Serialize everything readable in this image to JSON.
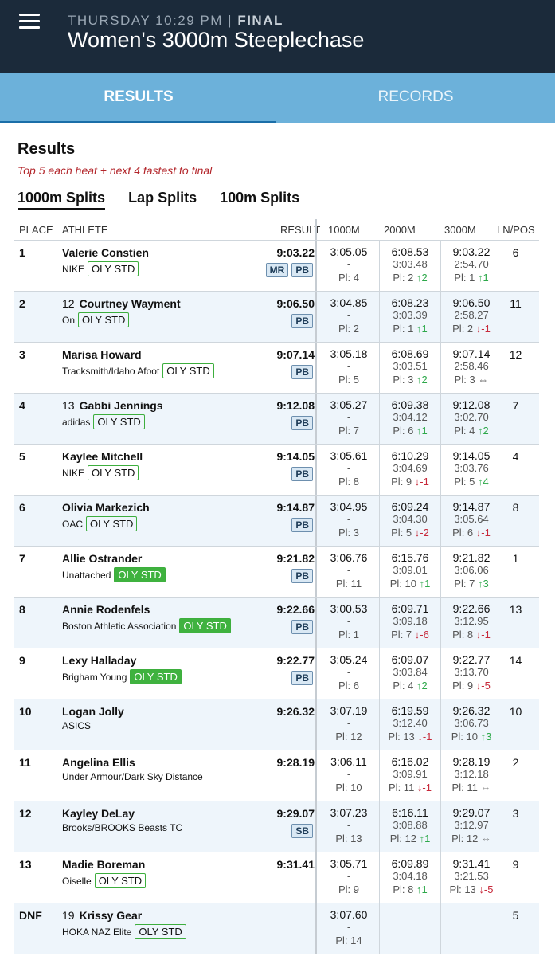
{
  "header": {
    "day_time": "THURSDAY 10:29 PM",
    "separator": " | ",
    "status": "FINAL",
    "title": "Women's 3000m Steeplechase"
  },
  "tabs": [
    {
      "label": "RESULTS"
    },
    {
      "label": "RECORDS"
    }
  ],
  "section": {
    "title": "Results",
    "note": "Top 5 each heat + next 4 fastest to final"
  },
  "split_tabs": [
    {
      "label": "1000m Splits"
    },
    {
      "label": "Lap Splits"
    },
    {
      "label": "100m Splits"
    }
  ],
  "columns": {
    "place": "PLACE",
    "athlete": "ATHLETE",
    "result": "RESULT",
    "s1": "1000M",
    "s2": "2000M",
    "s3": "3000M",
    "lane": "LN/POS"
  },
  "rows": [
    {
      "place": "1",
      "bib": "",
      "name": "Valerie Constien",
      "team": "NIKE",
      "oly": "OLY STD",
      "oly_fill": false,
      "result": "9:03.22",
      "badges": [
        "MR",
        "PB"
      ],
      "s1": {
        "t": "3:05.05",
        "l": "-",
        "p": "Pl: 4",
        "a": "",
        "d": ""
      },
      "s2": {
        "t": "6:08.53",
        "l": "3:03.48",
        "p": "Pl: 2",
        "a": "↑2",
        "d": "up"
      },
      "s3": {
        "t": "9:03.22",
        "l": "2:54.70",
        "p": "Pl: 1",
        "a": "↑1",
        "d": "up"
      },
      "lane": "6"
    },
    {
      "place": "2",
      "bib": "12",
      "name": "Courtney Wayment",
      "team": "On",
      "oly": "OLY STD",
      "oly_fill": false,
      "result": "9:06.50",
      "badges": [
        "PB"
      ],
      "s1": {
        "t": "3:04.85",
        "l": "-",
        "p": "Pl: 2",
        "a": "",
        "d": ""
      },
      "s2": {
        "t": "6:08.23",
        "l": "3:03.39",
        "p": "Pl: 1",
        "a": "↑1",
        "d": "up"
      },
      "s3": {
        "t": "9:06.50",
        "l": "2:58.27",
        "p": "Pl: 2",
        "a": "↓-1",
        "d": "down"
      },
      "lane": "11"
    },
    {
      "place": "3",
      "bib": "",
      "name": "Marisa Howard",
      "team": "Tracksmith/Idaho Afoot",
      "oly": "OLY STD",
      "oly_fill": false,
      "result": "9:07.14",
      "badges": [
        "PB"
      ],
      "s1": {
        "t": "3:05.18",
        "l": "-",
        "p": "Pl: 5",
        "a": "",
        "d": ""
      },
      "s2": {
        "t": "6:08.69",
        "l": "3:03.51",
        "p": "Pl: 3",
        "a": "↑2",
        "d": "up"
      },
      "s3": {
        "t": "9:07.14",
        "l": "2:58.46",
        "p": "Pl: 3",
        "a": "⇔",
        "d": "same"
      },
      "lane": "12"
    },
    {
      "place": "4",
      "bib": "13",
      "name": "Gabbi Jennings",
      "team": "adidas",
      "oly": "OLY STD",
      "oly_fill": false,
      "result": "9:12.08",
      "badges": [
        "PB"
      ],
      "s1": {
        "t": "3:05.27",
        "l": "-",
        "p": "Pl: 7",
        "a": "",
        "d": ""
      },
      "s2": {
        "t": "6:09.38",
        "l": "3:04.12",
        "p": "Pl: 6",
        "a": "↑1",
        "d": "up"
      },
      "s3": {
        "t": "9:12.08",
        "l": "3:02.70",
        "p": "Pl: 4",
        "a": "↑2",
        "d": "up"
      },
      "lane": "7"
    },
    {
      "place": "5",
      "bib": "",
      "name": "Kaylee Mitchell",
      "team": "NIKE",
      "oly": "OLY STD",
      "oly_fill": false,
      "result": "9:14.05",
      "badges": [
        "PB"
      ],
      "s1": {
        "t": "3:05.61",
        "l": "-",
        "p": "Pl: 8",
        "a": "",
        "d": ""
      },
      "s2": {
        "t": "6:10.29",
        "l": "3:04.69",
        "p": "Pl: 9",
        "a": "↓-1",
        "d": "down"
      },
      "s3": {
        "t": "9:14.05",
        "l": "3:03.76",
        "p": "Pl: 5",
        "a": "↑4",
        "d": "up"
      },
      "lane": "4"
    },
    {
      "place": "6",
      "bib": "",
      "name": "Olivia Markezich",
      "team": "OAC",
      "oly": "OLY STD",
      "oly_fill": false,
      "result": "9:14.87",
      "badges": [
        "PB"
      ],
      "s1": {
        "t": "3:04.95",
        "l": "-",
        "p": "Pl: 3",
        "a": "",
        "d": ""
      },
      "s2": {
        "t": "6:09.24",
        "l": "3:04.30",
        "p": "Pl: 5",
        "a": "↓-2",
        "d": "down"
      },
      "s3": {
        "t": "9:14.87",
        "l": "3:05.64",
        "p": "Pl: 6",
        "a": "↓-1",
        "d": "down"
      },
      "lane": "8"
    },
    {
      "place": "7",
      "bib": "",
      "name": "Allie Ostrander",
      "team": "Unattached",
      "oly": "OLY STD",
      "oly_fill": true,
      "result": "9:21.82",
      "badges": [
        "PB"
      ],
      "s1": {
        "t": "3:06.76",
        "l": "-",
        "p": "Pl: 11",
        "a": "",
        "d": ""
      },
      "s2": {
        "t": "6:15.76",
        "l": "3:09.01",
        "p": "Pl: 10",
        "a": "↑1",
        "d": "up"
      },
      "s3": {
        "t": "9:21.82",
        "l": "3:06.06",
        "p": "Pl: 7",
        "a": "↑3",
        "d": "up"
      },
      "lane": "1"
    },
    {
      "place": "8",
      "bib": "",
      "name": "Annie Rodenfels",
      "team": "Boston Athletic Association",
      "oly": "OLY STD",
      "oly_fill": true,
      "result": "9:22.66",
      "badges": [
        "PB"
      ],
      "s1": {
        "t": "3:00.53",
        "l": "-",
        "p": "Pl: 1",
        "a": "",
        "d": ""
      },
      "s2": {
        "t": "6:09.71",
        "l": "3:09.18",
        "p": "Pl: 7",
        "a": "↓-6",
        "d": "down"
      },
      "s3": {
        "t": "9:22.66",
        "l": "3:12.95",
        "p": "Pl: 8",
        "a": "↓-1",
        "d": "down"
      },
      "lane": "13"
    },
    {
      "place": "9",
      "bib": "",
      "name": "Lexy Halladay",
      "team": "Brigham Young",
      "oly": "OLY STD",
      "oly_fill": true,
      "result": "9:22.77",
      "badges": [
        "PB"
      ],
      "s1": {
        "t": "3:05.24",
        "l": "-",
        "p": "Pl: 6",
        "a": "",
        "d": ""
      },
      "s2": {
        "t": "6:09.07",
        "l": "3:03.84",
        "p": "Pl: 4",
        "a": "↑2",
        "d": "up"
      },
      "s3": {
        "t": "9:22.77",
        "l": "3:13.70",
        "p": "Pl: 9",
        "a": "↓-5",
        "d": "down"
      },
      "lane": "14"
    },
    {
      "place": "10",
      "bib": "",
      "name": "Logan Jolly",
      "team": "ASICS",
      "oly": "",
      "oly_fill": false,
      "result": "9:26.32",
      "badges": [],
      "s1": {
        "t": "3:07.19",
        "l": "-",
        "p": "Pl: 12",
        "a": "",
        "d": ""
      },
      "s2": {
        "t": "6:19.59",
        "l": "3:12.40",
        "p": "Pl: 13",
        "a": "↓-1",
        "d": "down"
      },
      "s3": {
        "t": "9:26.32",
        "l": "3:06.73",
        "p": "Pl: 10",
        "a": "↑3",
        "d": "up"
      },
      "lane": "10"
    },
    {
      "place": "11",
      "bib": "",
      "name": "Angelina Ellis",
      "team": "Under Armour/Dark Sky Distance",
      "oly": "",
      "oly_fill": false,
      "result": "9:28.19",
      "badges": [],
      "s1": {
        "t": "3:06.11",
        "l": "-",
        "p": "Pl: 10",
        "a": "",
        "d": ""
      },
      "s2": {
        "t": "6:16.02",
        "l": "3:09.91",
        "p": "Pl: 11",
        "a": "↓-1",
        "d": "down"
      },
      "s3": {
        "t": "9:28.19",
        "l": "3:12.18",
        "p": "Pl: 11",
        "a": "⇔",
        "d": "same"
      },
      "lane": "2"
    },
    {
      "place": "12",
      "bib": "",
      "name": "Kayley DeLay",
      "team": "Brooks/BROOKS Beasts TC",
      "oly": "",
      "oly_fill": false,
      "result": "9:29.07",
      "badges": [
        "SB"
      ],
      "s1": {
        "t": "3:07.23",
        "l": "-",
        "p": "Pl: 13",
        "a": "",
        "d": ""
      },
      "s2": {
        "t": "6:16.11",
        "l": "3:08.88",
        "p": "Pl: 12",
        "a": "↑1",
        "d": "up"
      },
      "s3": {
        "t": "9:29.07",
        "l": "3:12.97",
        "p": "Pl: 12",
        "a": "⇔",
        "d": "same"
      },
      "lane": "3"
    },
    {
      "place": "13",
      "bib": "",
      "name": "Madie Boreman",
      "team": "Oiselle",
      "oly": "OLY STD",
      "oly_fill": false,
      "result": "9:31.41",
      "badges": [],
      "s1": {
        "t": "3:05.71",
        "l": "-",
        "p": "Pl: 9",
        "a": "",
        "d": ""
      },
      "s2": {
        "t": "6:09.89",
        "l": "3:04.18",
        "p": "Pl: 8",
        "a": "↑1",
        "d": "up"
      },
      "s3": {
        "t": "9:31.41",
        "l": "3:21.53",
        "p": "Pl: 13",
        "a": "↓-5",
        "d": "down"
      },
      "lane": "9"
    },
    {
      "place": "DNF",
      "bib": "19",
      "name": "Krissy Gear",
      "team": "HOKA NAZ Elite",
      "oly": "OLY STD",
      "oly_fill": false,
      "result": "",
      "badges": [],
      "s1": {
        "t": "3:07.60",
        "l": "-",
        "p": "Pl: 14",
        "a": "",
        "d": ""
      },
      "s2": {
        "t": "",
        "l": "",
        "p": "",
        "a": "",
        "d": ""
      },
      "s3": {
        "t": "",
        "l": "",
        "p": "",
        "a": "",
        "d": ""
      },
      "lane": "5"
    }
  ]
}
